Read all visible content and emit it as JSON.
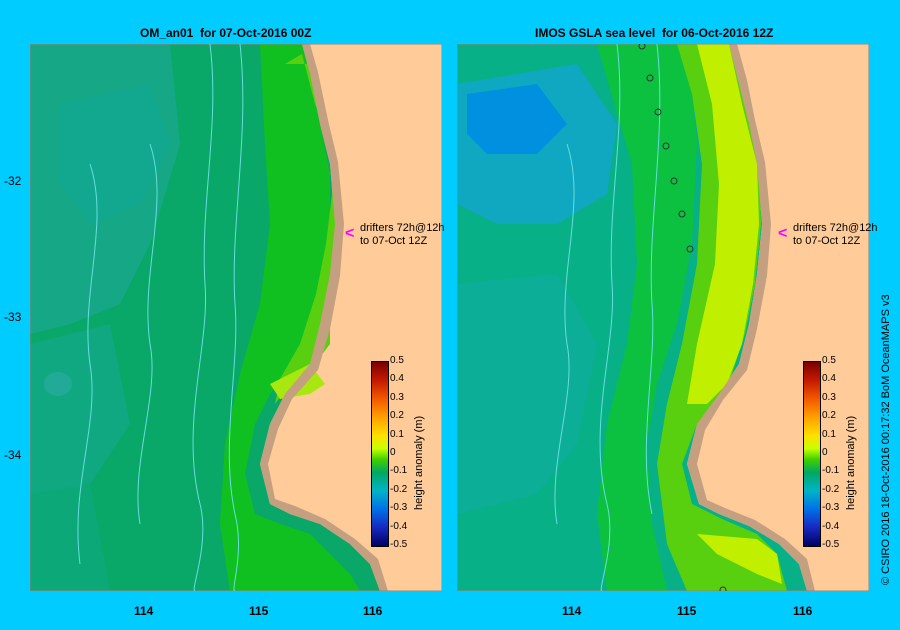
{
  "left_panel": {
    "title": "OM_an01  for 07-Oct-2016 00Z",
    "drifter_line1": "drifters 72h@12h",
    "drifter_line2": "to 07-Oct 12Z"
  },
  "right_panel": {
    "title": "IMOS GSLA sea level  for 06-Oct-2016 12Z",
    "drifter_line1": "drifters 72h@12h",
    "drifter_line2": "to 07-Oct 12Z"
  },
  "y_axis": [
    "-32",
    "-33",
    "-34"
  ],
  "x_axis": [
    "114",
    "115",
    "116"
  ],
  "colorbar": {
    "label": "height anomaly (m)",
    "ticks": [
      "0.5",
      "0.4",
      "0.3",
      "0.2",
      "0.1",
      "0",
      "-0.1",
      "-0.2",
      "-0.3",
      "-0.4",
      "-0.5"
    ]
  },
  "credit": "© CSIRO 2016   18-Oct-2016 00:17:32 BoM OceanMAPS v3"
}
